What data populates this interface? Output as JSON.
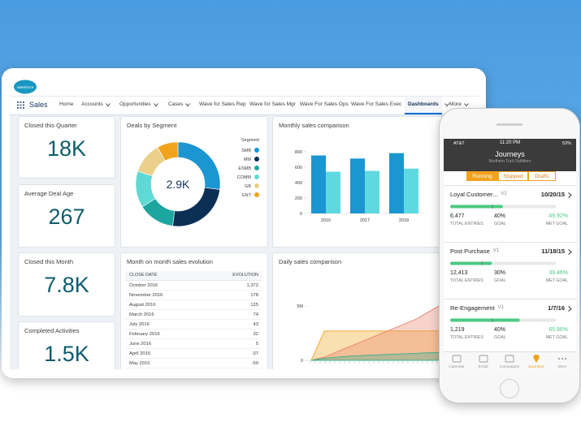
{
  "nav": {
    "logo": "salesforce",
    "app": "Sales",
    "tabs": [
      "Home",
      "Accounts",
      "Opportunities",
      "Cases",
      "Wave for Sales Rep",
      "Wave for Sales Mgr",
      "Wave For Sales Ops",
      "Wave For Sales Exec",
      "Dashboards",
      "More"
    ]
  },
  "kpis": [
    {
      "title": "Closed this Quarter",
      "value": "18K"
    },
    {
      "title": "Average Deal Age",
      "value": "267"
    },
    {
      "title": "Closed this Month",
      "value": "7.8K"
    },
    {
      "title": "Completed Activities",
      "value": "1.5K"
    }
  ],
  "deals_by_segment": {
    "title": "Deals by Segment",
    "center": "2.9K",
    "legend_title": "Segment",
    "segments": [
      {
        "name": "SMB",
        "color": "#1b96d2",
        "value": 27
      },
      {
        "name": "MM",
        "color": "#0b2f55",
        "value": 25
      },
      {
        "name": "ESMB",
        "color": "#1da5a0",
        "value": 14
      },
      {
        "name": "COMM",
        "color": "#5fd9d6",
        "value": 14
      },
      {
        "name": "GB",
        "color": "#ead08a",
        "value": 12
      },
      {
        "name": "ENT",
        "color": "#f2a31c",
        "value": 8
      }
    ]
  },
  "monthly_sales": {
    "title": "Monthly sales comparison",
    "categories": [
      "2016",
      "2017",
      "2018"
    ],
    "series": [
      {
        "color": "#1b96d2",
        "values": [
          750,
          710,
          780
        ]
      },
      {
        "color": "#5fd9e0",
        "values": [
          540,
          550,
          580
        ]
      }
    ],
    "ylim": [
      0,
      850
    ],
    "yticks": [
      0,
      200,
      400,
      600,
      800
    ]
  },
  "month_on_month": {
    "title": "Month on month sales evolution",
    "columns": [
      "CLOSE DATE",
      "EVOLUTION"
    ],
    "rows": [
      [
        "October 2016",
        "1,372"
      ],
      [
        "November 2016",
        "178"
      ],
      [
        "August 2016",
        "125"
      ],
      [
        "March 2016",
        "74"
      ],
      [
        "July 2016",
        "43"
      ],
      [
        "February 2016",
        "32"
      ],
      [
        "June 2016",
        "5"
      ],
      [
        "April 2016",
        "-37"
      ],
      [
        "May 2016",
        "-59"
      ]
    ]
  },
  "daily_sales": {
    "title": "Daily sales comparison",
    "ylim": [
      0,
      7000000
    ],
    "yticks": [
      0,
      {
        "value": 5000000,
        "label": "5M"
      }
    ],
    "series": [
      {
        "color": "#f2a31c",
        "values": [
          0,
          2700000,
          2700000,
          2700000,
          2700000,
          2700000,
          2700000,
          2700000,
          2700000,
          2700000,
          2700000,
          2700000
        ]
      },
      {
        "color": "#e9826b",
        "values": [
          0,
          300000,
          800000,
          1300000,
          1800000,
          2300000,
          2800000,
          3300000,
          3800000,
          4500000,
          5200000,
          5900000
        ]
      },
      {
        "color": "#3bb08f",
        "values": [
          0,
          200000,
          300000,
          400000,
          450000,
          500000,
          550000,
          600000,
          650000,
          700000,
          700000,
          750000
        ]
      }
    ]
  },
  "phone": {
    "carrier": "AT&T",
    "time": "11:20 PM",
    "battery": "53%",
    "title": "Journeys",
    "subtitle": "Northern Trail Outfitters",
    "tabs": [
      "Running",
      "Stopped",
      "Drafts"
    ],
    "journeys": [
      {
        "name": "Loyal Customer...",
        "version": "V2",
        "date": "10/20/15",
        "entries": "6,477",
        "entries_label": "TOTAL ENTRIES",
        "goal": {
          "value": 40,
          "label": "40%"
        },
        "goal_label": "GOAL",
        "met_goal": {
          "value": 49.92,
          "label": "49.92%"
        },
        "met_goal_label": "MET GOAL"
      },
      {
        "name": "Post Purchase",
        "version": "V1",
        "date": "11/18/15",
        "entries": "12,413",
        "entries_label": "TOTAL ENTRIES",
        "goal": {
          "value": 30,
          "label": "30%"
        },
        "goal_label": "GOAL",
        "met_goal": {
          "value": 39.46,
          "label": "39.46%"
        },
        "met_goal_label": "MET GOAL"
      },
      {
        "name": "Re-Engagement",
        "version": "V1",
        "date": "1/7/16",
        "entries": "1,219",
        "entries_label": "TOTAL ENTRIES",
        "goal": {
          "value": 40,
          "label": "40%"
        },
        "goal_label": "GOAL",
        "met_goal": {
          "value": 65.86,
          "label": "65.86%"
        },
        "met_goal_label": "MET GOAL"
      }
    ],
    "bottom_nav": [
      "Calendar",
      "Email",
      "Campaigns",
      "Journeys",
      "More"
    ]
  }
}
